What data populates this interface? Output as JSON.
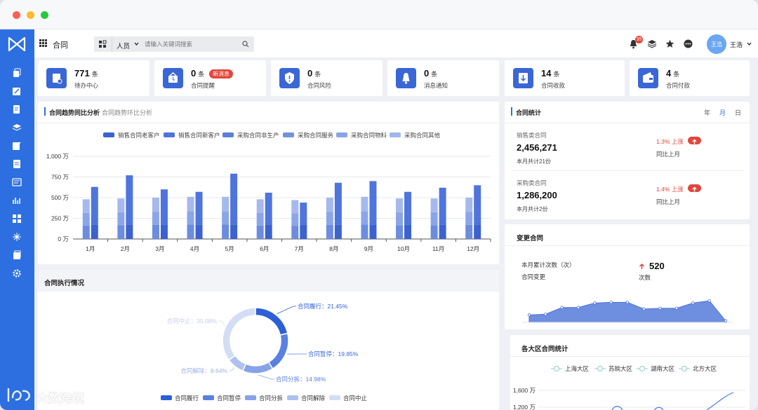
{
  "header": {
    "title": "合同",
    "people_filter": "人员",
    "search_placeholder": "请输入关键词搜索",
    "notification_count": "35",
    "user_name": "王浩",
    "avatar_text": "王浩"
  },
  "stats": [
    {
      "num": "771",
      "unit": "条",
      "label": "待办中心",
      "badge": ""
    },
    {
      "num": "0",
      "unit": "条",
      "label": "合同提醒",
      "badge": "新消息"
    },
    {
      "num": "0",
      "unit": "条",
      "label": "合同风险",
      "badge": ""
    },
    {
      "num": "0",
      "unit": "条",
      "label": "消息通知",
      "badge": ""
    },
    {
      "num": "14",
      "unit": "条",
      "label": "合同收款",
      "badge": ""
    },
    {
      "num": "4",
      "unit": "条",
      "label": "合同付款",
      "badge": ""
    }
  ],
  "trend": {
    "tab_active": "合同趋势同比分析",
    "tab_inactive": "合同趋势环比分析"
  },
  "stats_panel": {
    "title": "合同统计",
    "periods": [
      "年",
      "月",
      "日"
    ],
    "period_active": "月",
    "items": [
      {
        "type": "销售类合同",
        "amount": "2,456,271",
        "sub": "本月共计21份",
        "pct": "1.3%",
        "dir": "上涨",
        "cmp": "同比上月"
      },
      {
        "type": "采购类合同",
        "amount": "1,286,200",
        "sub": "本月共计2份",
        "pct": "1.4%",
        "dir": "上涨",
        "cmp": "同比上月"
      }
    ]
  },
  "change": {
    "title": "变更合同",
    "label1": "本月累计次数（次）",
    "label2": "合同变更",
    "value": "520",
    "value_label": "次数"
  },
  "exec": {
    "title": "合同执行情况"
  },
  "region": {
    "title": "各大区合同统计"
  },
  "watermark": "大数跨境",
  "chart_data": [
    {
      "type": "bar",
      "categories": [
        "1月",
        "2月",
        "3月",
        "4月",
        "5月",
        "6月",
        "7月",
        "8月",
        "9月",
        "10月",
        "11月",
        "12月"
      ],
      "ylim": [
        0,
        1000
      ],
      "yticks": [
        "0 万",
        "250 万",
        "500 万",
        "750 万",
        "1,000 万"
      ],
      "stack_colors": [
        "#6b8de0",
        "#8ba6e8",
        "#a5b9ec"
      ],
      "series": [
        {
          "name": "销售合同老客户",
          "values": [
            170,
            170,
            170,
            170,
            170,
            170,
            170,
            170,
            170,
            170,
            170,
            170
          ],
          "color": "#3c62cf"
        },
        {
          "name": "销售合同新客户",
          "values": [
            630,
            770,
            600,
            570,
            790,
            560,
            440,
            680,
            700,
            570,
            620,
            650
          ],
          "color": "#4f74dc"
        },
        {
          "name": "采购合同非生产",
          "values": [
            100,
            100,
            100,
            100,
            100,
            100,
            100,
            100,
            100,
            100,
            100,
            100
          ],
          "color": "#5d7fd4"
        },
        {
          "name": "采购合同服务",
          "values": [
            100,
            100,
            100,
            100,
            100,
            100,
            100,
            100,
            100,
            100,
            100,
            100
          ],
          "color": "#7393dc"
        },
        {
          "name": "采购合同物料",
          "values": [
            100,
            100,
            100,
            100,
            100,
            100,
            100,
            100,
            100,
            100,
            100,
            100
          ],
          "color": "#8aa5e4"
        },
        {
          "name": "采购合同其他",
          "values": [
            480,
            490,
            500,
            510,
            510,
            480,
            470,
            500,
            510,
            490,
            490,
            500
          ],
          "color": "#9fb6ea"
        }
      ]
    },
    {
      "type": "pie",
      "slices": [
        {
          "name": "合同履行",
          "pct": 21.45,
          "color": "#2d5fd6",
          "label": "合同履行：21.45%"
        },
        {
          "name": "合同暂停",
          "pct": 19.85,
          "color": "#5a80e0",
          "label": "合同暂停：19.85%"
        },
        {
          "name": "合同分拆",
          "pct": 14.98,
          "color": "#86a2e8",
          "label": "合同分拆：14.98%"
        },
        {
          "name": "合同解除",
          "pct": 8.64,
          "color": "#aec1ef",
          "label": "合同解除：8.64%"
        },
        {
          "name": "合同中止",
          "pct": 35.08,
          "color": "#d3ddf6",
          "label": "合同中止：35.08%"
        }
      ]
    },
    {
      "type": "area",
      "values": [
        10,
        11,
        20,
        20,
        26,
        27,
        27,
        18,
        19,
        19,
        26,
        29,
        2
      ]
    },
    {
      "type": "line",
      "series": [
        {
          "name": "上海大区"
        },
        {
          "name": "苏皖大区"
        },
        {
          "name": "湖南大区"
        },
        {
          "name": "北方大区"
        }
      ],
      "yticks": [
        "1,600 万",
        "1,200 万"
      ]
    }
  ]
}
